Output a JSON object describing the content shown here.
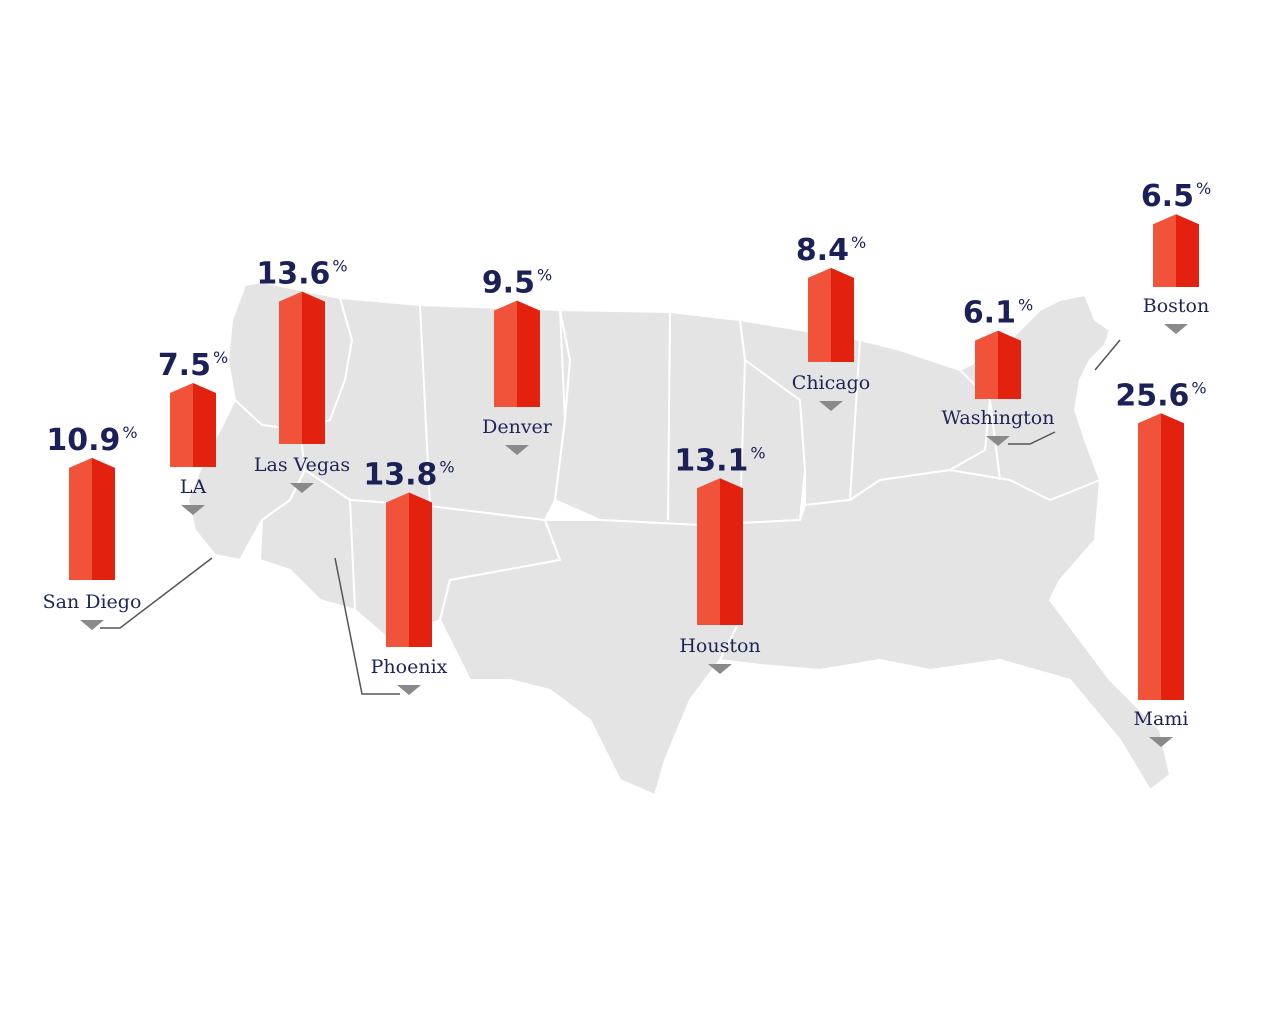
{
  "chart_data": {
    "type": "bar",
    "title": "",
    "unit": "%",
    "colors": {
      "bar_light": "#f0523a",
      "bar_dark": "#e3210f",
      "label": "#1b2157",
      "map": "#e4e4e4",
      "pointer": "#8a8a8a"
    },
    "cities": [
      {
        "name": "San Diego",
        "value": 10.9
      },
      {
        "name": "LA",
        "value": 7.5
      },
      {
        "name": "Las Vegas",
        "value": 13.6
      },
      {
        "name": "Phoenix",
        "value": 13.8
      },
      {
        "name": "Denver",
        "value": 9.5
      },
      {
        "name": "Houston",
        "value": 13.1
      },
      {
        "name": "Chicago",
        "value": 8.4
      },
      {
        "name": "Washington",
        "value": 6.1
      },
      {
        "name": "Boston",
        "value": 6.5
      },
      {
        "name": "Mami",
        "value": 25.6
      }
    ]
  }
}
